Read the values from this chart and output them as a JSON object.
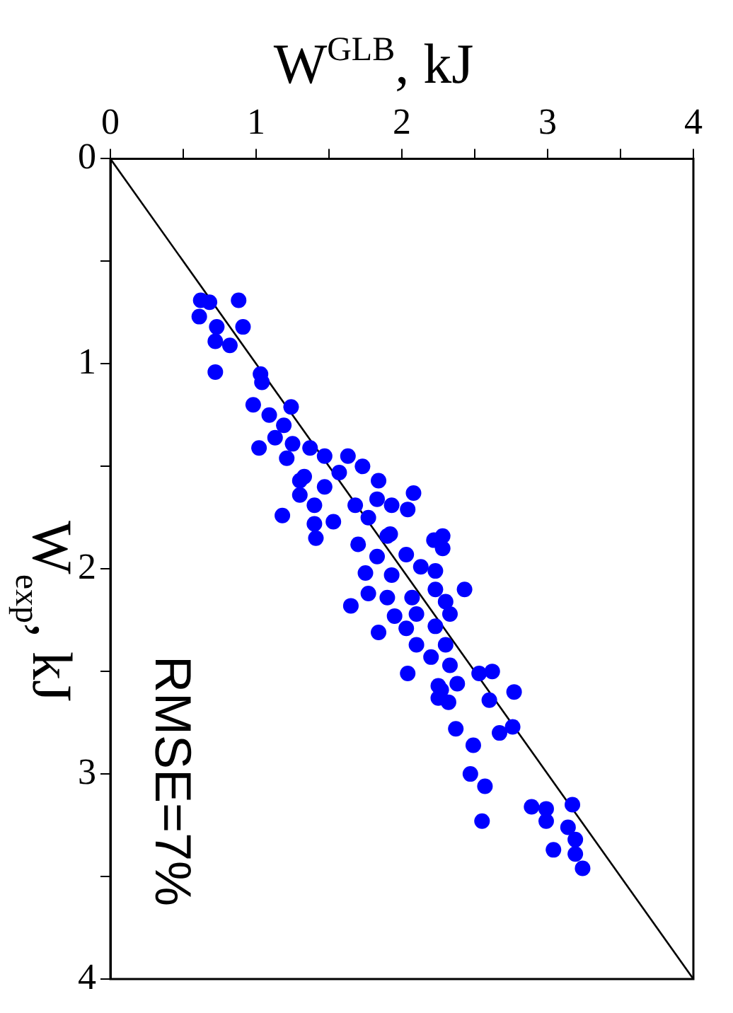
{
  "chart_data": {
    "type": "scatter",
    "xlabel": "W$^{GLB}$, kJ",
    "ylabel": "W$_{exp}$, kJ",
    "xlim": [
      0,
      4
    ],
    "ylim": [
      4,
      0
    ],
    "xticks": [
      0,
      {
        "value": 0.5,
        "label": null
      },
      1,
      {
        "value": 1.5,
        "label": null
      },
      2,
      {
        "value": 2.5,
        "label": null
      },
      3,
      {
        "value": 3.5,
        "label": null
      },
      4
    ],
    "yticks": [
      0,
      {
        "value": 0.5,
        "label": null
      },
      1,
      {
        "value": 1.5,
        "label": null
      },
      2,
      {
        "value": 2.5,
        "label": null
      },
      3,
      {
        "value": 3.5,
        "label": null
      },
      4
    ],
    "grid": false,
    "legend": false,
    "annotations": [
      "RMSE=7%"
    ],
    "series": [
      {
        "marker": "circle",
        "color": "#0000ff",
        "x": [
          0.62,
          0.68,
          0.88,
          0.61,
          0.73,
          0.91,
          0.72,
          0.82,
          0.72,
          1.03,
          1.04,
          0.98,
          1.24,
          1.09,
          1.19,
          1.13,
          1.02,
          1.25,
          1.37,
          1.21,
          1.47,
          1.63,
          1.73,
          1.57,
          1.33,
          1.84,
          1.47,
          1.3,
          1.83,
          2.08,
          1.93,
          2.04,
          1.68,
          1.18,
          1.4,
          1.77,
          1.4,
          1.53,
          1.41,
          1.9,
          2.22,
          2.28,
          1.3,
          1.92,
          2.28,
          1.7,
          1.83,
          2.03,
          2.13,
          2.23,
          1.75,
          1.93,
          2.43,
          1.77,
          1.9,
          2.07,
          2.23,
          1.65,
          2.3,
          1.95,
          2.1,
          2.33,
          2.03,
          2.23,
          1.84,
          2.1,
          2.3,
          2.2,
          2.33,
          2.04,
          2.25,
          2.38,
          2.53,
          2.62,
          2.77,
          2.25,
          2.6,
          2.27,
          2.32,
          2.37,
          2.49,
          2.67,
          2.76,
          2.47,
          2.57,
          2.55,
          2.89,
          2.99,
          2.99,
          3.17,
          3.14,
          3.19,
          3.04,
          3.19,
          3.24
        ],
        "values": [
          0.69,
          0.7,
          0.69,
          0.77,
          0.82,
          0.82,
          0.89,
          0.91,
          1.04,
          1.05,
          1.09,
          1.2,
          1.21,
          1.25,
          1.3,
          1.36,
          1.41,
          1.39,
          1.41,
          1.46,
          1.45,
          1.45,
          1.5,
          1.53,
          1.55,
          1.57,
          1.6,
          1.64,
          1.66,
          1.63,
          1.69,
          1.71,
          1.69,
          1.74,
          1.69,
          1.75,
          1.78,
          1.77,
          1.85,
          1.84,
          1.86,
          1.84,
          1.57,
          1.83,
          1.9,
          1.88,
          1.94,
          1.93,
          1.99,
          2.01,
          2.02,
          2.03,
          2.1,
          2.12,
          2.14,
          2.14,
          2.1,
          2.18,
          2.16,
          2.23,
          2.22,
          2.22,
          2.29,
          2.28,
          2.31,
          2.37,
          2.37,
          2.43,
          2.47,
          2.51,
          2.57,
          2.56,
          2.51,
          2.5,
          2.6,
          2.63,
          2.64,
          2.59,
          2.65,
          2.78,
          2.86,
          2.8,
          2.77,
          3.0,
          3.06,
          3.23,
          3.16,
          3.17,
          3.23,
          3.15,
          3.26,
          3.32,
          3.37,
          3.39,
          3.46
        ]
      },
      {
        "type": "line",
        "marker": "none",
        "color": "#000000",
        "x": [
          0,
          4
        ],
        "values": [
          0,
          4
        ]
      }
    ]
  }
}
